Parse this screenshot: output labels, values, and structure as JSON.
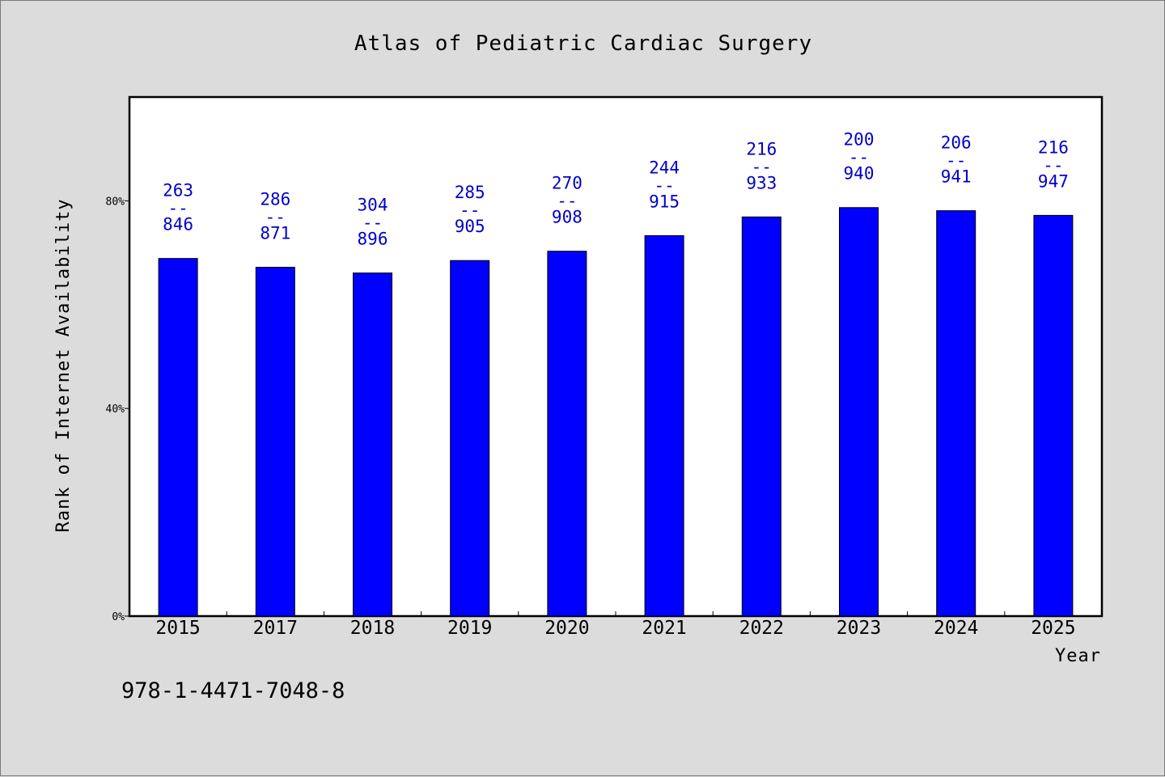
{
  "chart_data": {
    "type": "bar",
    "title": "Atlas of Pediatric Cardiac Surgery",
    "xlabel": "Year",
    "ylabel": "Rank of Internet Availability",
    "ylim": [
      0,
      100
    ],
    "y_ticks": [
      {
        "value": 0,
        "label": "0%"
      },
      {
        "value": 40,
        "label": "40%"
      },
      {
        "value": 80,
        "label": "80%"
      }
    ],
    "categories": [
      "2015",
      "2017",
      "2018",
      "2019",
      "2020",
      "2021",
      "2022",
      "2023",
      "2024",
      "2025"
    ],
    "values": [
      68.9,
      67.2,
      66.1,
      68.5,
      70.3,
      73.3,
      76.9,
      78.7,
      78.1,
      77.2
    ],
    "data_labels": [
      {
        "top": "263",
        "sep": "--",
        "bottom": "846"
      },
      {
        "top": "286",
        "sep": "--",
        "bottom": "871"
      },
      {
        "top": "304",
        "sep": "--",
        "bottom": "896"
      },
      {
        "top": "285",
        "sep": "--",
        "bottom": "905"
      },
      {
        "top": "270",
        "sep": "--",
        "bottom": "908"
      },
      {
        "top": "244",
        "sep": "--",
        "bottom": "915"
      },
      {
        "top": "216",
        "sep": "--",
        "bottom": "933"
      },
      {
        "top": "200",
        "sep": "--",
        "bottom": "940"
      },
      {
        "top": "206",
        "sep": "--",
        "bottom": "941"
      },
      {
        "top": "216",
        "sep": "--",
        "bottom": "947"
      }
    ],
    "bar_color": "#0000ff",
    "label_color": "#0000cc",
    "plot_background": "#ffffff",
    "page_background": "#dcdcdc",
    "grid": false,
    "legend": "none"
  },
  "footer": {
    "isbn": "978-1-4471-7048-8"
  }
}
